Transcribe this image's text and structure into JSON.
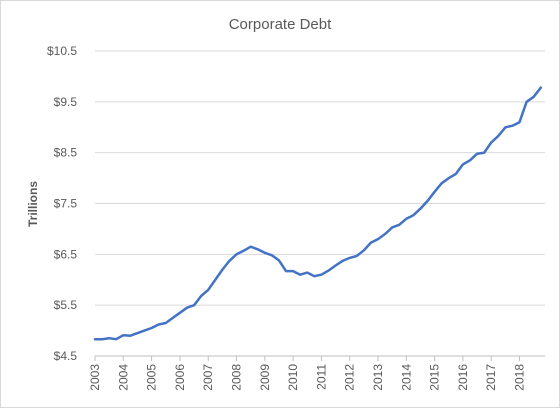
{
  "chart_data": {
    "type": "line",
    "title": "Corporate Debt",
    "xlabel": "",
    "ylabel": "Trillions",
    "ylim": [
      4.5,
      10.5
    ],
    "yticks": [
      4.5,
      5.5,
      6.5,
      7.5,
      8.5,
      9.5,
      10.5
    ],
    "ytick_labels": [
      "$4.5",
      "$5.5",
      "$6.5",
      "$7.5",
      "$8.5",
      "$9.5",
      "$10.5"
    ],
    "xlim": [
      2003,
      2018.9
    ],
    "xticks": [
      "2003",
      "2004",
      "2005",
      "2006",
      "2007",
      "2008",
      "2009",
      "2010",
      "2011",
      "2012",
      "2013",
      "2014",
      "2015",
      "2016",
      "2017",
      "2018"
    ],
    "grid": true,
    "series_color": "#4472c4",
    "series": [
      {
        "values": [
          [
            2003.0,
            4.83
          ],
          [
            2003.25,
            4.83
          ],
          [
            2003.5,
            4.85
          ],
          [
            2003.75,
            4.83
          ],
          [
            2004.0,
            4.91
          ],
          [
            2004.25,
            4.9
          ],
          [
            2004.5,
            4.95
          ],
          [
            2004.75,
            5.0
          ],
          [
            2005.0,
            5.05
          ],
          [
            2005.25,
            5.12
          ],
          [
            2005.5,
            5.15
          ],
          [
            2005.75,
            5.25
          ],
          [
            2006.0,
            5.35
          ],
          [
            2006.25,
            5.45
          ],
          [
            2006.5,
            5.5
          ],
          [
            2006.75,
            5.68
          ],
          [
            2007.0,
            5.8
          ],
          [
            2007.25,
            6.0
          ],
          [
            2007.5,
            6.2
          ],
          [
            2007.75,
            6.37
          ],
          [
            2008.0,
            6.5
          ],
          [
            2008.25,
            6.57
          ],
          [
            2008.5,
            6.65
          ],
          [
            2008.75,
            6.6
          ],
          [
            2009.0,
            6.53
          ],
          [
            2009.25,
            6.48
          ],
          [
            2009.5,
            6.38
          ],
          [
            2009.75,
            6.17
          ],
          [
            2010.0,
            6.17
          ],
          [
            2010.25,
            6.1
          ],
          [
            2010.5,
            6.14
          ],
          [
            2010.75,
            6.07
          ],
          [
            2011.0,
            6.1
          ],
          [
            2011.25,
            6.18
          ],
          [
            2011.5,
            6.28
          ],
          [
            2011.75,
            6.37
          ],
          [
            2012.0,
            6.43
          ],
          [
            2012.25,
            6.47
          ],
          [
            2012.5,
            6.58
          ],
          [
            2012.75,
            6.73
          ],
          [
            2013.0,
            6.8
          ],
          [
            2013.25,
            6.9
          ],
          [
            2013.5,
            7.03
          ],
          [
            2013.75,
            7.08
          ],
          [
            2014.0,
            7.2
          ],
          [
            2014.25,
            7.27
          ],
          [
            2014.5,
            7.4
          ],
          [
            2014.75,
            7.55
          ],
          [
            2015.0,
            7.73
          ],
          [
            2015.25,
            7.9
          ],
          [
            2015.5,
            8.0
          ],
          [
            2015.75,
            8.08
          ],
          [
            2016.0,
            8.27
          ],
          [
            2016.25,
            8.35
          ],
          [
            2016.5,
            8.48
          ],
          [
            2016.75,
            8.5
          ],
          [
            2017.0,
            8.7
          ],
          [
            2017.25,
            8.83
          ],
          [
            2017.5,
            9.0
          ],
          [
            2017.75,
            9.03
          ],
          [
            2018.0,
            9.1
          ],
          [
            2018.25,
            9.5
          ],
          [
            2018.5,
            9.6
          ],
          [
            2018.75,
            9.78
          ]
        ]
      }
    ]
  }
}
